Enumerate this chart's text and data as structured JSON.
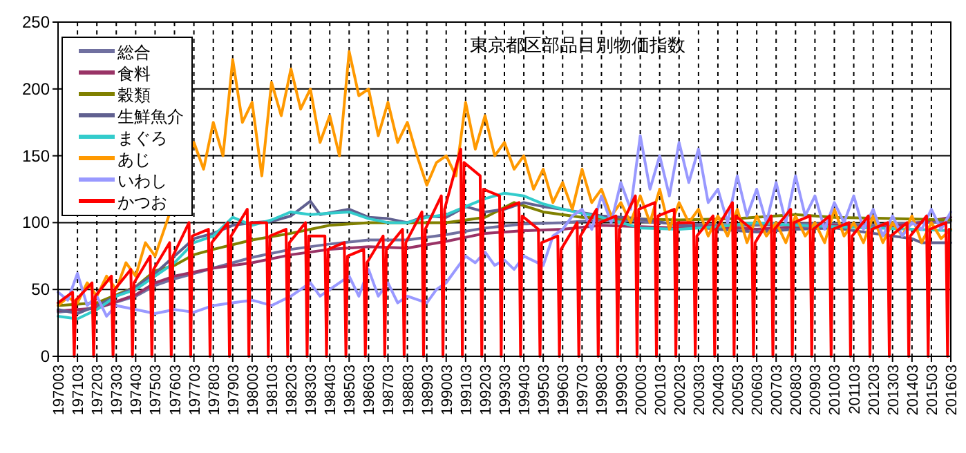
{
  "chart_data": {
    "type": "line",
    "title": "東京都区部品目別物価指数",
    "xlim": [
      "1970-03",
      "2016-03"
    ],
    "ylim": [
      0,
      250
    ],
    "yticks": [
      0,
      50,
      100,
      150,
      200,
      250
    ],
    "grid": true,
    "legend": "top left",
    "xticks": [
      {
        "value": "1970-03",
        "label": "197003"
      },
      {
        "value": "1971-03",
        "label": "197103"
      },
      {
        "value": "1972-03",
        "label": "197203"
      },
      {
        "value": "1973-03",
        "label": "197303"
      },
      {
        "value": "1974-03",
        "label": "197403"
      },
      {
        "value": "1975-03",
        "label": "197503"
      },
      {
        "value": "1976-03",
        "label": "197603"
      },
      {
        "value": "1977-03",
        "label": "197703"
      },
      {
        "value": "1978-03",
        "label": "197803"
      },
      {
        "value": "1979-03",
        "label": "197903"
      },
      {
        "value": "1980-03",
        "label": "198003"
      },
      {
        "value": "1981-03",
        "label": "198103"
      },
      {
        "value": "1982-03",
        "label": "198203"
      },
      {
        "value": "1983-03",
        "label": "198303"
      },
      {
        "value": "1984-03",
        "label": "198403"
      },
      {
        "value": "1985-03",
        "label": "198503"
      },
      {
        "value": "1986-03",
        "label": "198603"
      },
      {
        "value": "1987-03",
        "label": "198703"
      },
      {
        "value": "1988-03",
        "label": "198803"
      },
      {
        "value": "1989-03",
        "label": "198903"
      },
      {
        "value": "1990-03",
        "label": "199003"
      },
      {
        "value": "1991-03",
        "label": "199103"
      },
      {
        "value": "1992-03",
        "label": "199203"
      },
      {
        "value": "1993-03",
        "label": "199303"
      },
      {
        "value": "1994-03",
        "label": "199403"
      },
      {
        "value": "1995-03",
        "label": "199503"
      },
      {
        "value": "1996-03",
        "label": "199603"
      },
      {
        "value": "1997-03",
        "label": "199703"
      },
      {
        "value": "1998-03",
        "label": "199803"
      },
      {
        "value": "1999-03",
        "label": "199903"
      },
      {
        "value": "2000-03",
        "label": "200003"
      },
      {
        "value": "2001-03",
        "label": "200103"
      },
      {
        "value": "2002-03",
        "label": "200203"
      },
      {
        "value": "2003-03",
        "label": "200303"
      },
      {
        "value": "2004-03",
        "label": "200403"
      },
      {
        "value": "2005-03",
        "label": "200503"
      },
      {
        "value": "2006-03",
        "label": "200603"
      },
      {
        "value": "2007-03",
        "label": "200703"
      },
      {
        "value": "2008-03",
        "label": "200803"
      },
      {
        "value": "2009-03",
        "label": "200903"
      },
      {
        "value": "2010-03",
        "label": "201003"
      },
      {
        "value": "2011-03",
        "label": "201103"
      },
      {
        "value": "2012-03",
        "label": "201203"
      },
      {
        "value": "2013-03",
        "label": "201303"
      },
      {
        "value": "2014-03",
        "label": "201403"
      },
      {
        "value": "2015-03",
        "label": "201503"
      },
      {
        "value": "2016-03",
        "label": "201603"
      }
    ],
    "series": [
      {
        "name": "総合",
        "color": "#7070a0",
        "x": [
          "1970-03",
          "1972-03",
          "1974-03",
          "1975-03",
          "1976-03",
          "1978-03",
          "1980-03",
          "1982-03",
          "1984-03",
          "1986-03",
          "1988-03",
          "1990-03",
          "1992-03",
          "1994-03",
          "1996-03",
          "1998-03",
          "2000-03",
          "2002-03",
          "2004-03",
          "2006-03",
          "2008-03",
          "2010-03",
          "2012-03",
          "2014-03",
          "2016-03"
        ],
        "values": [
          33,
          36,
          45,
          53,
          58,
          66,
          74,
          80,
          84,
          87,
          87,
          91,
          96,
          99,
          100,
          102,
          101,
          99,
          98,
          98,
          99,
          99,
          98,
          100,
          101
        ]
      },
      {
        "name": "食料",
        "color": "#993366",
        "x": [
          "1970-03",
          "1972-03",
          "1974-03",
          "1975-03",
          "1976-03",
          "1978-03",
          "1980-03",
          "1982-03",
          "1984-03",
          "1986-03",
          "1988-03",
          "1990-03",
          "1992-03",
          "1994-03",
          "1996-03",
          "1998-03",
          "2000-03",
          "2002-03",
          "2004-03",
          "2006-03",
          "2008-03",
          "2010-03",
          "2012-03",
          "2014-03",
          "2016-03"
        ],
        "values": [
          34,
          36,
          46,
          55,
          60,
          66,
          70,
          76,
          80,
          82,
          81,
          86,
          92,
          94,
          95,
          98,
          97,
          96,
          97,
          95,
          97,
          98,
          96,
          99,
          104
        ]
      },
      {
        "name": "穀類",
        "color": "#808000",
        "x": [
          "1970-03",
          "1972-03",
          "1974-03",
          "1975-03",
          "1976-03",
          "1977-03",
          "1978-03",
          "1980-03",
          "1982-03",
          "1984-03",
          "1986-03",
          "1988-03",
          "1990-03",
          "1992-03",
          "1993-09",
          "1995-03",
          "1997-03",
          "1999-03",
          "2002-03",
          "2005-03",
          "2008-03",
          "2010-03",
          "2013-03",
          "2016-03"
        ],
        "values": [
          38,
          40,
          52,
          64,
          68,
          76,
          80,
          87,
          92,
          98,
          100,
          100,
          100,
          104,
          115,
          108,
          104,
          103,
          102,
          103,
          106,
          104,
          103,
          102
        ]
      },
      {
        "name": "生鮮魚介",
        "color": "#606090",
        "x": [
          "1970-03",
          "1971-03",
          "1972-03",
          "1973-03",
          "1974-03",
          "1975-03",
          "1976-03",
          "1977-03",
          "1978-03",
          "1979-03",
          "1980-03",
          "1981-03",
          "1982-03",
          "1983-03",
          "1983-09",
          "1985-03",
          "1986-03",
          "1987-03",
          "1988-03",
          "1989-03",
          "1990-03",
          "1991-03",
          "1992-03",
          "1993-03",
          "1994-03",
          "1995-03",
          "1996-03",
          "1998-03",
          "2000-03",
          "2002-03",
          "2004-03",
          "2006-03",
          "2008-03",
          "2010-03",
          "2012-03",
          "2014-03",
          "2014-09",
          "2016-03"
        ],
        "values": [
          35,
          32,
          38,
          45,
          52,
          62,
          75,
          88,
          92,
          98,
          100,
          101,
          105,
          116,
          106,
          110,
          104,
          103,
          100,
          105,
          104,
          112,
          108,
          110,
          115,
          112,
          110,
          105,
          103,
          98,
          95,
          93,
          95,
          96,
          92,
          88,
          85,
          85
        ]
      },
      {
        "name": "まぐろ",
        "color": "#33cccc",
        "x": [
          "1970-03",
          "1971-03",
          "1972-03",
          "1973-03",
          "1974-03",
          "1975-03",
          "1976-03",
          "1977-03",
          "1978-03",
          "1979-03",
          "1980-03",
          "1981-03",
          "1982-03",
          "1983-03",
          "1984-03",
          "1985-03",
          "1986-03",
          "1987-03",
          "1988-03",
          "1989-03",
          "1990-03",
          "1991-03",
          "1992-03",
          "1993-03",
          "1994-03",
          "1995-03",
          "1996-03",
          "1998-03",
          "2000-03",
          "2002-03",
          "2004-03",
          "2006-03",
          "2008-03",
          "2010-03",
          "2012-03",
          "2014-03",
          "2016-03"
        ],
        "values": [
          30,
          28,
          35,
          45,
          50,
          60,
          70,
          85,
          90,
          104,
          98,
          102,
          108,
          106,
          107,
          108,
          103,
          100,
          100,
          104,
          106,
          112,
          118,
          122,
          120,
          114,
          110,
          104,
          96,
          95,
          97,
          100,
          98,
          97,
          96,
          95,
          94
        ]
      },
      {
        "name": "あじ",
        "color": "#ff9900",
        "x": [
          "1970-03",
          "1970-09",
          "1971-03",
          "1971-09",
          "1972-03",
          "1972-09",
          "1973-03",
          "1973-09",
          "1974-03",
          "1974-09",
          "1975-03",
          "1977-03",
          "1977-09",
          "1978-03",
          "1978-09",
          "1979-03",
          "1979-09",
          "1980-03",
          "1980-09",
          "1981-03",
          "1981-09",
          "1982-03",
          "1982-09",
          "1983-03",
          "1983-09",
          "1984-03",
          "1984-09",
          "1985-03",
          "1985-09",
          "1986-03",
          "1986-09",
          "1987-03",
          "1987-09",
          "1988-03",
          "1988-09",
          "1989-03",
          "1989-09",
          "1990-03",
          "1990-09",
          "1991-03",
          "1991-09",
          "1992-03",
          "1992-09",
          "1993-03",
          "1993-09",
          "1994-03",
          "1994-09",
          "1995-03",
          "1995-09",
          "1996-03",
          "1996-09",
          "1997-03",
          "1997-09",
          "1998-03",
          "1998-09",
          "1999-03",
          "1999-09",
          "2000-03",
          "2000-09",
          "2001-03",
          "2001-09",
          "2002-03",
          "2002-09",
          "2003-03",
          "2003-09",
          "2004-03",
          "2004-09",
          "2005-03",
          "2005-09",
          "2006-03",
          "2006-09",
          "2007-03",
          "2007-09",
          "2008-03",
          "2008-09",
          "2009-03",
          "2009-09",
          "2010-03",
          "2010-09",
          "2011-03",
          "2011-09",
          "2012-03",
          "2012-09",
          "2013-03",
          "2013-09",
          "2014-03",
          "2014-09",
          "2015-03",
          "2015-09",
          "2016-03"
        ],
        "values": [
          38,
          44,
          40,
          55,
          45,
          60,
          50,
          70,
          60,
          85,
          75,
          160,
          140,
          175,
          150,
          222,
          175,
          190,
          135,
          205,
          180,
          215,
          185,
          200,
          160,
          180,
          150,
          228,
          195,
          200,
          165,
          190,
          160,
          175,
          150,
          128,
          145,
          150,
          135,
          190,
          155,
          180,
          150,
          160,
          140,
          150,
          125,
          140,
          115,
          130,
          110,
          140,
          115,
          125,
          105,
          115,
          100,
          120,
          100,
          125,
          95,
          115,
          100,
          110,
          90,
          105,
          90,
          110,
          85,
          105,
          90,
          100,
          85,
          105,
          90,
          100,
          85,
          110,
          90,
          100,
          85,
          105,
          85,
          100,
          90,
          105,
          85,
          100,
          88,
          95
        ]
      },
      {
        "name": "いわし",
        "color": "#9999ff",
        "x": [
          "1970-03",
          "1970-09",
          "1971-03",
          "1971-09",
          "1972-03",
          "1972-09",
          "1973-03",
          "1974-03",
          "1975-03",
          "1976-03",
          "1977-03",
          "1978-03",
          "1979-03",
          "1980-03",
          "1981-03",
          "1982-03",
          "1983-03",
          "1983-09",
          "1984-03",
          "1985-03",
          "1985-09",
          "1986-03",
          "1986-09",
          "1987-03",
          "1987-09",
          "1988-03",
          "1989-03",
          "1989-09",
          "1990-03",
          "1991-03",
          "1991-09",
          "1992-03",
          "1992-09",
          "1993-03",
          "1993-09",
          "1994-03",
          "1995-03",
          "1995-09",
          "1996-03",
          "1996-09",
          "1997-03",
          "1997-09",
          "1998-03",
          "1998-09",
          "1999-03",
          "1999-09",
          "2000-03",
          "2000-09",
          "2001-03",
          "2001-09",
          "2002-03",
          "2002-09",
          "2003-03",
          "2003-09",
          "2004-03",
          "2004-09",
          "2005-03",
          "2005-09",
          "2006-03",
          "2006-09",
          "2007-03",
          "2007-09",
          "2008-03",
          "2008-09",
          "2009-03",
          "2009-09",
          "2010-03",
          "2010-09",
          "2011-03",
          "2011-09",
          "2012-03",
          "2012-09",
          "2013-03",
          "2013-09",
          "2014-03",
          "2014-09",
          "2015-03",
          "2015-09",
          "2016-03"
        ],
        "values": [
          48,
          42,
          62,
          38,
          45,
          30,
          38,
          35,
          32,
          35,
          33,
          38,
          40,
          42,
          38,
          45,
          55,
          45,
          50,
          60,
          45,
          65,
          45,
          55,
          40,
          45,
          40,
          50,
          55,
          75,
          70,
          78,
          68,
          72,
          65,
          75,
          68,
          90,
          95,
          105,
          110,
          95,
          120,
          100,
          130,
          110,
          165,
          125,
          150,
          120,
          160,
          130,
          155,
          115,
          125,
          100,
          135,
          105,
          125,
          100,
          130,
          100,
          135,
          105,
          120,
          95,
          115,
          100,
          120,
          95,
          110,
          90,
          105,
          90,
          100,
          95,
          110,
          95,
          108
        ]
      },
      {
        "name": "かつお",
        "color": "#ff0000",
        "x": [
          "1970-03",
          "1970-12",
          "1971-01",
          "1971-02",
          "1971-12",
          "1972-01",
          "1972-02",
          "1972-12",
          "1973-01",
          "1973-02",
          "1973-12",
          "1974-01",
          "1974-02",
          "1974-12",
          "1975-01",
          "1975-02",
          "1975-12",
          "1976-01",
          "1976-02",
          "1976-12",
          "1977-01",
          "1977-02",
          "1977-12",
          "1978-01",
          "1978-02",
          "1978-12",
          "1979-01",
          "1979-02",
          "1979-12",
          "1980-01",
          "1980-02",
          "1980-12",
          "1981-01",
          "1981-02",
          "1981-12",
          "1982-01",
          "1982-02",
          "1982-12",
          "1983-01",
          "1983-02",
          "1983-12",
          "1984-01",
          "1984-02",
          "1984-12",
          "1985-01",
          "1985-02",
          "1985-12",
          "1986-01",
          "1986-02",
          "1986-12",
          "1987-01",
          "1987-02",
          "1987-12",
          "1988-01",
          "1988-02",
          "1988-12",
          "1989-01",
          "1989-02",
          "1989-12",
          "1990-01",
          "1990-02",
          "1990-12",
          "1991-01",
          "1991-02",
          "1991-12",
          "1992-01",
          "1992-02",
          "1992-12",
          "1993-01",
          "1993-02",
          "1993-12",
          "1994-01",
          "1994-02",
          "1994-12",
          "1995-01",
          "1995-02",
          "1995-12",
          "1996-01",
          "1996-02",
          "1996-12",
          "1997-01",
          "1997-02",
          "1997-12",
          "1998-01",
          "1998-02",
          "1998-12",
          "1999-01",
          "1999-02",
          "1999-12",
          "2000-01",
          "2000-02",
          "2000-12",
          "2001-01",
          "2001-02",
          "2001-12",
          "2002-01",
          "2002-02",
          "2002-12",
          "2003-01",
          "2003-02",
          "2003-12",
          "2004-01",
          "2004-02",
          "2004-12",
          "2005-01",
          "2005-02",
          "2005-12",
          "2006-01",
          "2006-02",
          "2006-12",
          "2007-01",
          "2007-02",
          "2007-12",
          "2008-01",
          "2008-02",
          "2008-12",
          "2009-01",
          "2009-02",
          "2009-12",
          "2010-01",
          "2010-02",
          "2010-12",
          "2011-01",
          "2011-02",
          "2011-12",
          "2012-01",
          "2012-02",
          "2012-12",
          "2013-01",
          "2013-02",
          "2013-12",
          "2014-01",
          "2014-02",
          "2014-12",
          "2015-01",
          "2015-02",
          "2015-12",
          "2016-01",
          "2016-02"
        ],
        "values": [
          40,
          48,
          0,
          42,
          55,
          0,
          45,
          60,
          0,
          50,
          65,
          0,
          55,
          75,
          0,
          65,
          85,
          0,
          75,
          100,
          0,
          90,
          95,
          0,
          85,
          100,
          0,
          90,
          110,
          0,
          100,
          100,
          0,
          90,
          95,
          0,
          85,
          100,
          0,
          90,
          90,
          0,
          80,
          85,
          0,
          75,
          80,
          0,
          70,
          90,
          0,
          80,
          95,
          0,
          85,
          108,
          0,
          95,
          120,
          0,
          110,
          155,
          0,
          145,
          135,
          0,
          125,
          120,
          0,
          110,
          115,
          0,
          105,
          95,
          0,
          85,
          90,
          0,
          80,
          100,
          0,
          90,
          110,
          0,
          100,
          105,
          0,
          95,
          120,
          0,
          110,
          115,
          0,
          105,
          110,
          0,
          100,
          100,
          0,
          90,
          105,
          0,
          95,
          115,
          0,
          105,
          95,
          0,
          85,
          105,
          0,
          95,
          110,
          0,
          100,
          105,
          0,
          95,
          105,
          0,
          95,
          100,
          0,
          90,
          105,
          0,
          95,
          100,
          0,
          90,
          100,
          0,
          90,
          105,
          0,
          95,
          100,
          0,
          95
        ]
      }
    ]
  }
}
